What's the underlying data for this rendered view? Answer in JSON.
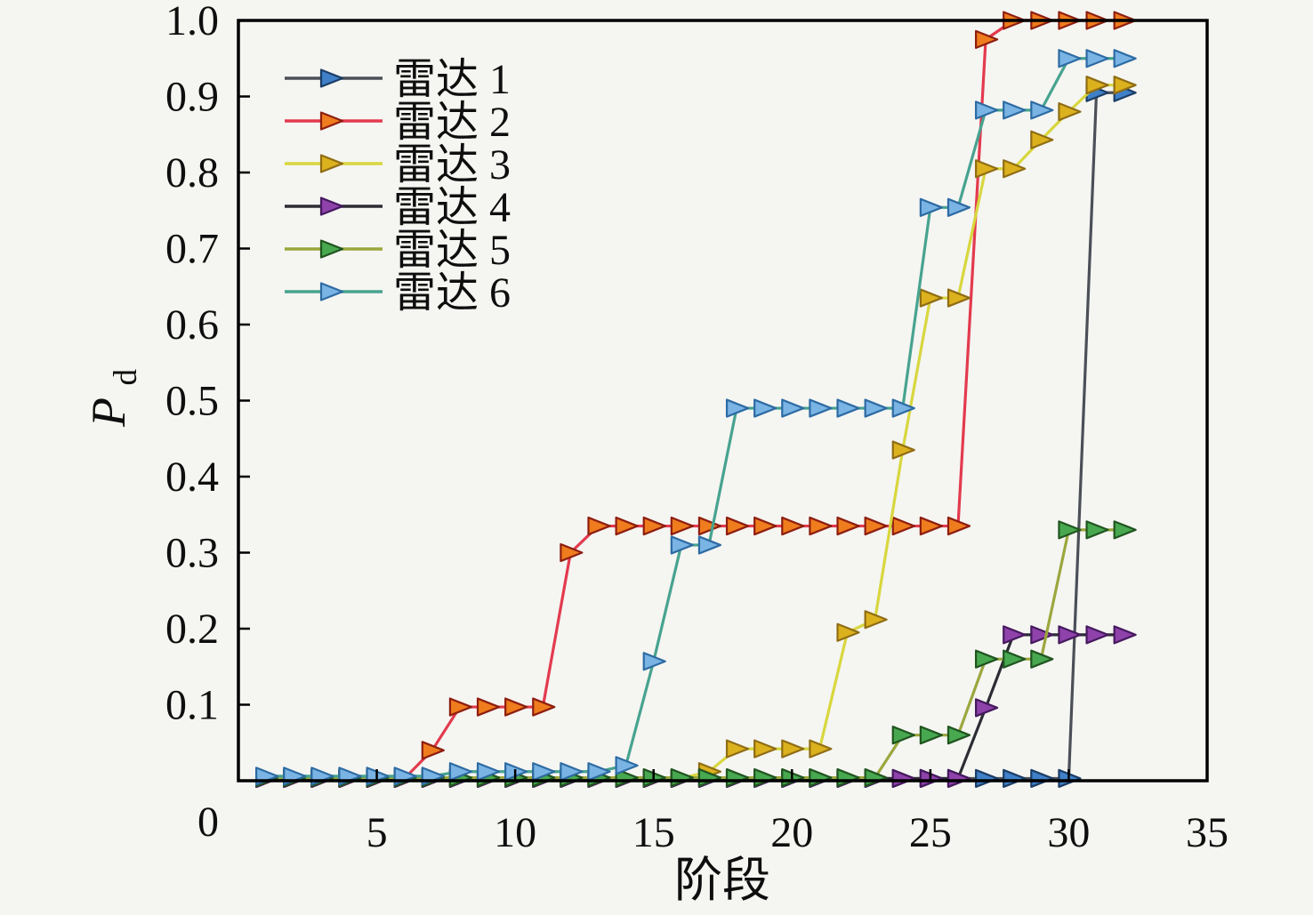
{
  "figure": {
    "background": "#f5f5f2",
    "text_color": "#0e0e0e",
    "xlabel": "阶段",
    "ylabel_main": "P",
    "ylabel_sub": "d"
  },
  "chart_data": {
    "type": "line",
    "title": "",
    "xlabel": "阶段",
    "ylabel": "Pd",
    "xlim": [
      0,
      35
    ],
    "ylim": [
      0,
      1.0
    ],
    "x_ticks": [
      0,
      5,
      10,
      15,
      20,
      25,
      30,
      35
    ],
    "x_tick_labels": [
      "5",
      "10",
      "15",
      "20",
      "25",
      "30",
      "35"
    ],
    "origin_label": "0",
    "y_ticks": [
      0.1,
      0.2,
      0.3,
      0.4,
      0.5,
      0.6,
      0.7,
      0.8,
      0.9,
      1.0
    ],
    "y_tick_labels": [
      "0.1",
      "0.2",
      "0.3",
      "0.4",
      "0.5",
      "0.6",
      "0.7",
      "0.8",
      "0.9",
      "1.0"
    ],
    "grid": false,
    "legend_position": "upper-left",
    "marker": "right-triangle",
    "x": [
      1,
      2,
      3,
      4,
      5,
      6,
      7,
      8,
      9,
      10,
      11,
      12,
      13,
      14,
      15,
      16,
      17,
      18,
      19,
      20,
      21,
      22,
      23,
      24,
      25,
      26,
      27,
      28,
      29,
      30,
      31,
      32
    ],
    "series": [
      {
        "name": "雷达 1",
        "line_color": "#4b4f57",
        "marker_fill": "#3f80c8",
        "marker_edge": "#1b3d66",
        "values": [
          0.003,
          0.003,
          0.003,
          0.003,
          0.003,
          0.003,
          0.003,
          0.003,
          0.003,
          0.003,
          0.003,
          0.003,
          0.003,
          0.003,
          0.003,
          0.003,
          0.003,
          0.003,
          0.003,
          0.003,
          0.003,
          0.003,
          0.003,
          0.003,
          0.003,
          0.003,
          0.003,
          0.003,
          0.003,
          0.003,
          0.905,
          0.905
        ]
      },
      {
        "name": "雷达 2",
        "line_color": "#e33a4e",
        "marker_fill": "#ef7c1d",
        "marker_edge": "#8e1e10",
        "values": [
          0.003,
          0.003,
          0.003,
          0.003,
          0.003,
          0.003,
          0.04,
          0.097,
          0.097,
          0.097,
          0.097,
          0.3,
          0.335,
          0.335,
          0.335,
          0.335,
          0.335,
          0.335,
          0.335,
          0.335,
          0.335,
          0.335,
          0.335,
          0.335,
          0.335,
          0.335,
          0.975,
          1.0,
          1.0,
          1.0,
          1.0,
          1.0
        ]
      },
      {
        "name": "雷达 3",
        "line_color": "#d8d73e",
        "marker_fill": "#dcb11e",
        "marker_edge": "#8f6d14",
        "values": [
          0.003,
          0.003,
          0.003,
          0.003,
          0.003,
          0.003,
          0.003,
          0.003,
          0.003,
          0.003,
          0.003,
          0.003,
          0.003,
          0.003,
          0.003,
          0.003,
          0.012,
          0.042,
          0.042,
          0.042,
          0.042,
          0.195,
          0.212,
          0.435,
          0.635,
          0.635,
          0.805,
          0.805,
          0.843,
          0.88,
          0.915,
          0.915
        ]
      },
      {
        "name": "雷达 4",
        "line_color": "#2c2c34",
        "marker_fill": "#8e42aa",
        "marker_edge": "#46195e",
        "values": [
          0.003,
          0.003,
          0.003,
          0.003,
          0.003,
          0.003,
          0.003,
          0.003,
          0.003,
          0.003,
          0.003,
          0.003,
          0.003,
          0.003,
          0.003,
          0.003,
          0.003,
          0.003,
          0.003,
          0.003,
          0.003,
          0.003,
          0.003,
          0.003,
          0.003,
          0.003,
          0.096,
          0.192,
          0.192,
          0.192,
          0.192,
          0.192
        ]
      },
      {
        "name": "雷达 5",
        "line_color": "#9ba73d",
        "marker_fill": "#48a850",
        "marker_edge": "#20551f",
        "values": [
          0.004,
          0.004,
          0.004,
          0.004,
          0.004,
          0.004,
          0.004,
          0.004,
          0.004,
          0.004,
          0.004,
          0.004,
          0.004,
          0.004,
          0.004,
          0.004,
          0.004,
          0.004,
          0.004,
          0.004,
          0.004,
          0.004,
          0.004,
          0.06,
          0.06,
          0.06,
          0.16,
          0.16,
          0.16,
          0.33,
          0.33,
          0.33
        ]
      },
      {
        "name": "雷达 6",
        "line_color": "#47a38f",
        "marker_fill": "#7ab4e4",
        "marker_edge": "#2d6ba3",
        "values": [
          0.006,
          0.006,
          0.006,
          0.006,
          0.006,
          0.006,
          0.006,
          0.012,
          0.012,
          0.012,
          0.012,
          0.012,
          0.012,
          0.02,
          0.157,
          0.31,
          0.31,
          0.49,
          0.49,
          0.49,
          0.49,
          0.49,
          0.49,
          0.49,
          0.754,
          0.754,
          0.882,
          0.882,
          0.882,
          0.95,
          0.95,
          0.95
        ]
      }
    ]
  }
}
